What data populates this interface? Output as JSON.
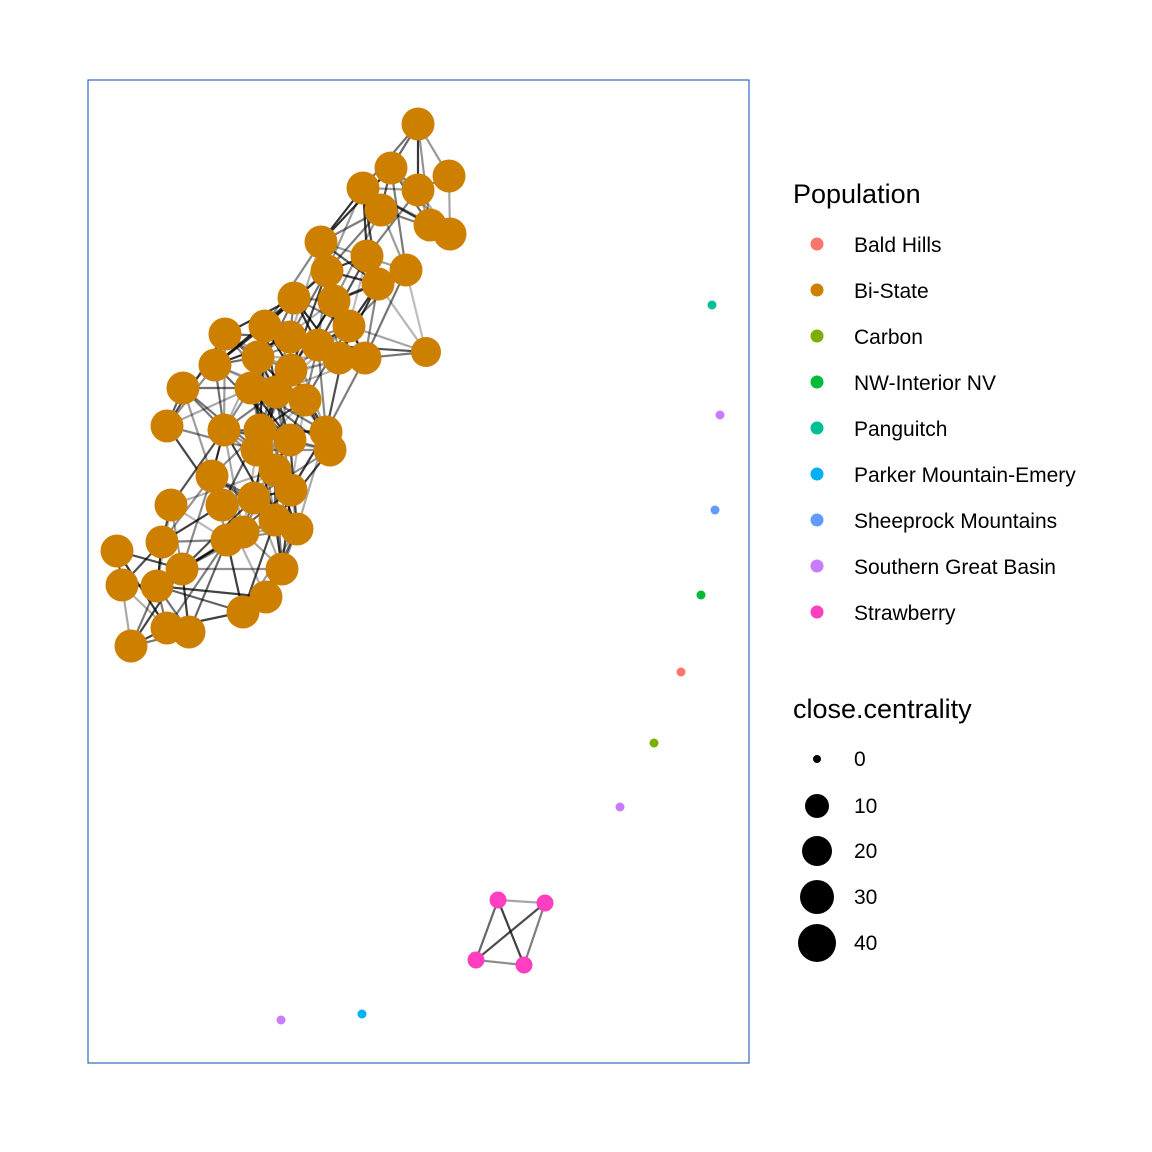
{
  "legend": {
    "population_title": "Population",
    "populations": [
      {
        "name": "Bald Hills",
        "color": "#F8766D"
      },
      {
        "name": "Bi-State",
        "color": "#CD7F00"
      },
      {
        "name": "Carbon",
        "color": "#7CAE00"
      },
      {
        "name": "NW-Interior NV",
        "color": "#00BA38"
      },
      {
        "name": "Panguitch",
        "color": "#00BF96"
      },
      {
        "name": "Parker Mountain-Emery",
        "color": "#00B0F6"
      },
      {
        "name": "Sheeprock Mountains",
        "color": "#619CFF"
      },
      {
        "name": "Southern Great Basin",
        "color": "#C77CFF"
      },
      {
        "name": "Strawberry",
        "color": "#FF3FBF"
      }
    ],
    "size_title": "close.centrality",
    "sizes": [
      "0",
      "10",
      "20",
      "30",
      "40"
    ]
  },
  "network": {
    "node_color": "#CD7F00",
    "edge_color": "#000000"
  }
}
